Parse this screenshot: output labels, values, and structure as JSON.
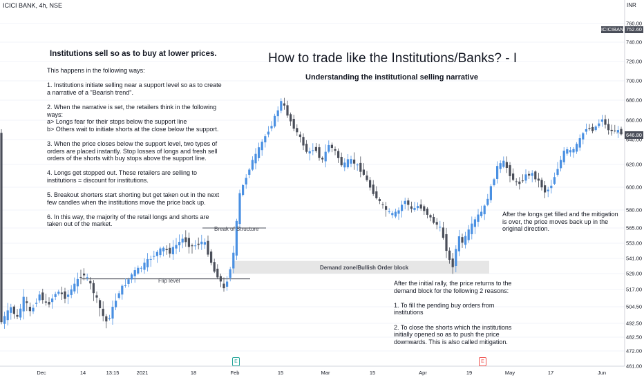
{
  "symbol_line": "ICICI BANK, 4h, NSE",
  "currency": "INR",
  "ticker_badge": "ICICIBANK",
  "price_badge": "752.60",
  "last_price_badge": "646.80",
  "title": "How to trade like the Institutions/Banks? - I",
  "subtitle": "Understanding the institutional selling narrative",
  "left_heading": "Institutions sell so as to buy at lower prices.",
  "left_intro": "This happens in the following ways:",
  "left_points": [
    "1. Institutions initiate selling near a support level so as to create a narrative of a \"Bearish trend\".",
    "2. When the narrative is set, the retailers think in the following ways:\na> Longs fear for their stops below the support line\nb> Others wait to initiate shorts at the close below the support.",
    "3. When the price closes below the support level, two types of orders are placed instantly. Stop losses of longs and fresh sell orders of the shorts with buy stops above the support line.",
    "4. Longs get stopped out. These retailers are selling to institutions = discount for institutions.",
    "5. Breakout shorters start shorting but get taken out in the next few candles when the institutions move the price back up.",
    "6. In this way, the majority of the retail longs and shorts are taken out of the market."
  ],
  "right_note": "After the longs get filled and the mitigation is over, the price moves back up in the original direction.",
  "bottom_note": {
    "intro": "After the initial rally, the price returns to the demand block for the following 2 reasons:",
    "point1": "1. To fill the pending buy orders from institutions",
    "point2": "2. To close the shorts which the institutions initially opened so as to push the price downwards. This is also called mitigation."
  },
  "annotations": {
    "flip_level": "Flip level",
    "break_of_structure": "Break of Structure",
    "demand_zone": "Demand zone/Bullish Order block"
  },
  "events": {
    "earnings": "E",
    "dividend": "E"
  },
  "colors": {
    "up": "#4a90e2",
    "down": "#4a4e59",
    "zone": "#e6e6e6",
    "grid": "#f0f3fa",
    "axis_text": "#131722"
  },
  "chart_data": {
    "type": "candlestick",
    "title": "How to trade like the Institutions/Banks? - I",
    "subtitle": "Understanding the institutional selling narrative",
    "y_axis_ticks": [
      760.0,
      740.0,
      720.0,
      700.0,
      680.0,
      660.0,
      640.0,
      620.0,
      600.0,
      580.0,
      565.0,
      553.0,
      541.0,
      529.0,
      517.0,
      504.5,
      492.5,
      482.5,
      472.0,
      461.0
    ],
    "ylim": [
      461.0,
      770.0
    ],
    "x_tick_labels": [
      "Dec",
      "14",
      "13:15",
      "2021",
      "18",
      "Feb",
      "15",
      "Mar",
      "15",
      "Apr",
      "19",
      "May",
      "17",
      "Jun"
    ],
    "flip_level_price": 525,
    "break_of_structure_price": 565,
    "demand_zone": [
      529,
      539
    ],
    "last_price": 646.8,
    "price_path": [
      [
        0,
        490
      ],
      [
        18,
        504
      ],
      [
        27,
        496
      ],
      [
        37,
        511
      ],
      [
        46,
        500
      ],
      [
        60,
        514
      ],
      [
        70,
        505
      ],
      [
        85,
        516
      ],
      [
        98,
        511
      ],
      [
        112,
        522
      ],
      [
        122,
        530
      ],
      [
        132,
        522
      ],
      [
        142,
        510
      ],
      [
        150,
        499
      ],
      [
        157,
        493
      ],
      [
        165,
        503
      ],
      [
        175,
        516
      ],
      [
        185,
        522
      ],
      [
        195,
        530
      ],
      [
        207,
        534
      ],
      [
        218,
        540
      ],
      [
        228,
        545
      ],
      [
        238,
        549
      ],
      [
        248,
        546
      ],
      [
        258,
        552
      ],
      [
        268,
        557
      ],
      [
        278,
        550
      ],
      [
        288,
        552
      ],
      [
        297,
        555
      ],
      [
        305,
        543
      ],
      [
        312,
        531
      ],
      [
        318,
        527
      ],
      [
        324,
        520
      ],
      [
        328,
        515
      ],
      [
        333,
        531
      ],
      [
        338,
        536
      ],
      [
        343,
        558
      ],
      [
        348,
        592
      ],
      [
        355,
        603
      ],
      [
        365,
        620
      ],
      [
        375,
        630
      ],
      [
        385,
        642
      ],
      [
        395,
        655
      ],
      [
        403,
        668
      ],
      [
        410,
        680
      ],
      [
        418,
        666
      ],
      [
        428,
        652
      ],
      [
        438,
        640
      ],
      [
        448,
        628
      ],
      [
        458,
        634
      ],
      [
        468,
        622
      ],
      [
        478,
        636
      ],
      [
        488,
        630
      ],
      [
        498,
        618
      ],
      [
        508,
        624
      ],
      [
        518,
        620
      ],
      [
        528,
        612
      ],
      [
        538,
        600
      ],
      [
        548,
        590
      ],
      [
        558,
        582
      ],
      [
        568,
        576
      ],
      [
        578,
        578
      ],
      [
        588,
        589
      ],
      [
        598,
        580
      ],
      [
        608,
        584
      ],
      [
        618,
        579
      ],
      [
        628,
        571
      ],
      [
        638,
        566
      ],
      [
        645,
        556
      ],
      [
        652,
        540
      ],
      [
        657,
        534
      ],
      [
        662,
        548
      ],
      [
        667,
        558
      ],
      [
        672,
        553
      ],
      [
        680,
        562
      ],
      [
        688,
        570
      ],
      [
        695,
        576
      ],
      [
        702,
        580
      ],
      [
        712,
        598
      ],
      [
        722,
        618
      ],
      [
        732,
        622
      ],
      [
        742,
        609
      ],
      [
        752,
        602
      ],
      [
        762,
        610
      ],
      [
        772,
        612
      ],
      [
        782,
        605
      ],
      [
        792,
        595
      ],
      [
        800,
        602
      ],
      [
        810,
        618
      ],
      [
        820,
        632
      ],
      [
        830,
        630
      ],
      [
        840,
        638
      ],
      [
        850,
        652
      ],
      [
        860,
        650
      ],
      [
        868,
        656
      ],
      [
        874,
        662
      ],
      [
        880,
        652
      ],
      [
        888,
        648
      ],
      [
        894,
        650
      ],
      [
        900,
        647
      ]
    ]
  }
}
